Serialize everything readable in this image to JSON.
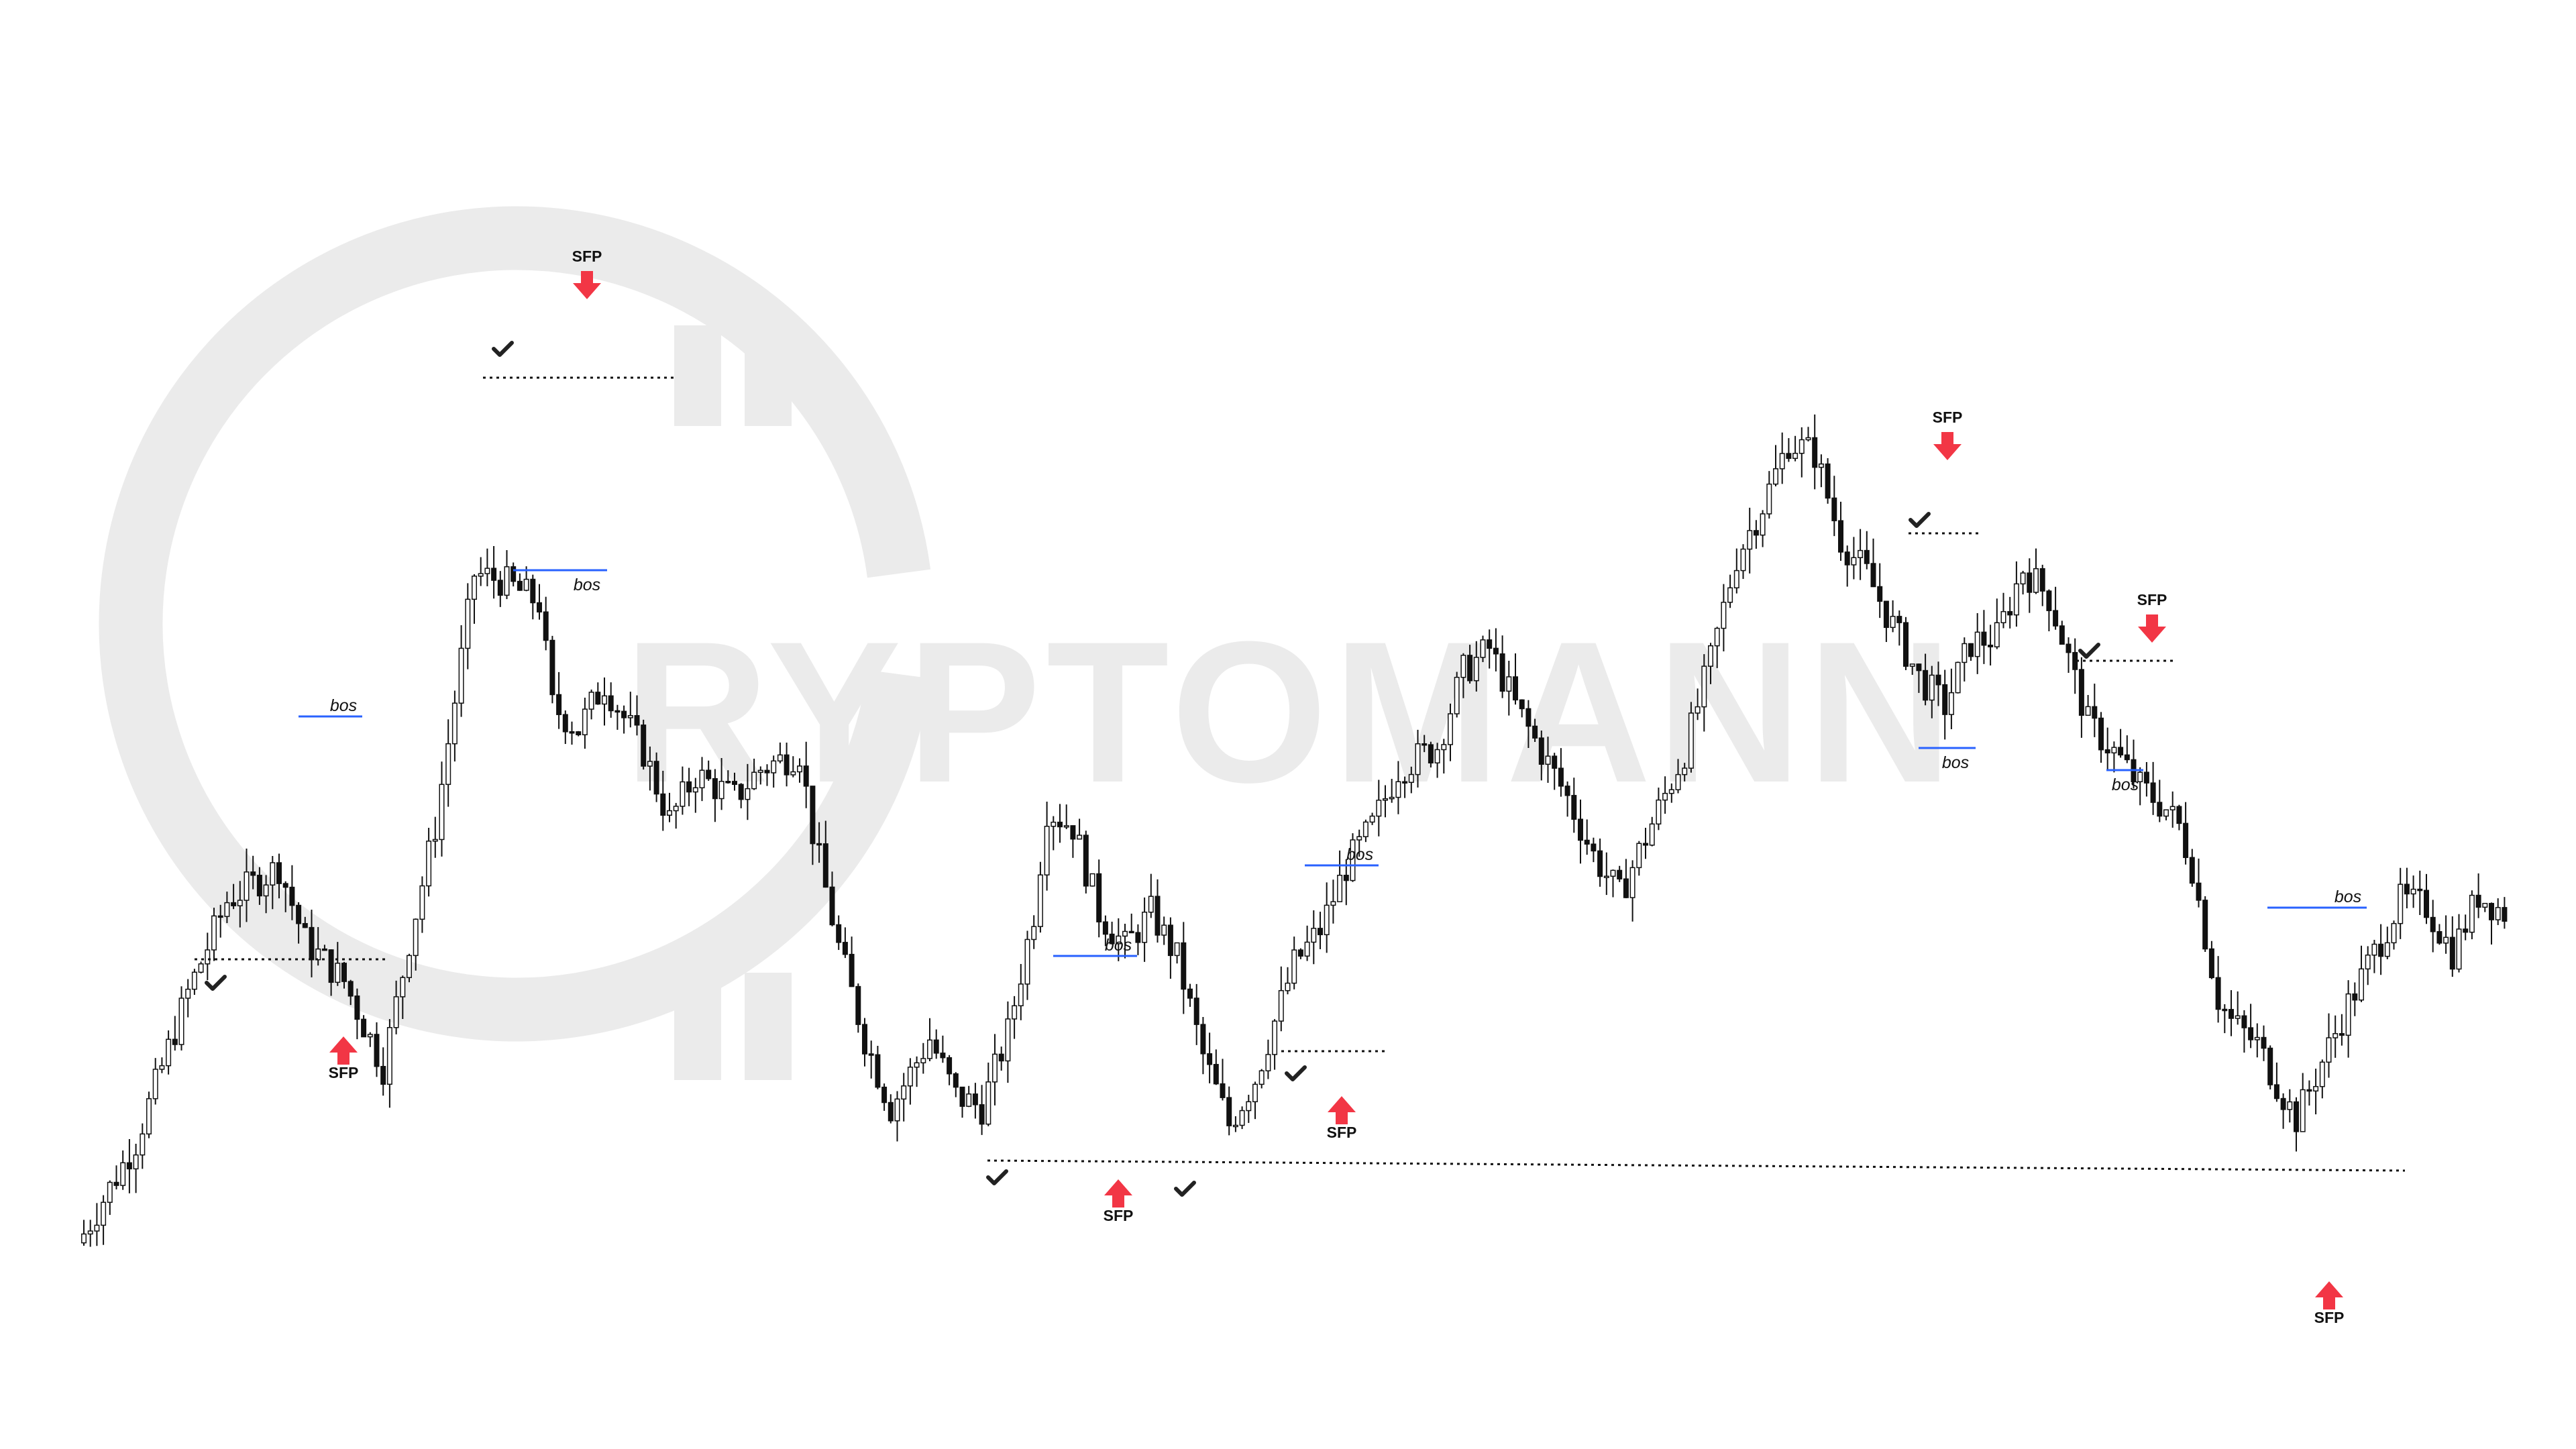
{
  "colors": {
    "background": "#ffffff",
    "bull_candle_fill": "#ffffff",
    "bear_candle_fill": "#111111",
    "candle_outline": "#111111",
    "sfp_arrow": "#f23645",
    "bos_line": "#2962ff",
    "level_line": "#111111",
    "watermark": "#ebebeb"
  },
  "watermark": {
    "text": "RYPTOMANN",
    "icon": "bitcoin-c-logo"
  },
  "chart_data": {
    "type": "candlestick",
    "title": "",
    "xlabel": "",
    "ylabel": "",
    "grid": false,
    "legend": "none",
    "x": "bar index",
    "ylim": [
      0,
      1000
    ],
    "close_path": [
      [
        0,
        100
      ],
      [
        8,
        180
      ],
      [
        16,
        310
      ],
      [
        22,
        390
      ],
      [
        30,
        420
      ],
      [
        34,
        355
      ],
      [
        40,
        320
      ],
      [
        46,
        245
      ],
      [
        50,
        355
      ],
      [
        54,
        455
      ],
      [
        60,
        675
      ],
      [
        64,
        670
      ],
      [
        70,
        650
      ],
      [
        72,
        560
      ],
      [
        76,
        540
      ],
      [
        80,
        580
      ],
      [
        86,
        520
      ],
      [
        90,
        460
      ],
      [
        94,
        500
      ],
      [
        100,
        480
      ],
      [
        104,
        505
      ],
      [
        110,
        520
      ],
      [
        112,
        450
      ],
      [
        116,
        350
      ],
      [
        120,
        270
      ],
      [
        124,
        210
      ],
      [
        130,
        270
      ],
      [
        134,
        220
      ],
      [
        138,
        210
      ],
      [
        142,
        275
      ],
      [
        146,
        380
      ],
      [
        148,
        470
      ],
      [
        152,
        455
      ],
      [
        156,
        380
      ],
      [
        160,
        350
      ],
      [
        164,
        380
      ],
      [
        168,
        340
      ],
      [
        172,
        255
      ],
      [
        176,
        195
      ],
      [
        180,
        235
      ],
      [
        186,
        335
      ],
      [
        190,
        365
      ],
      [
        194,
        420
      ],
      [
        198,
        455
      ],
      [
        202,
        505
      ],
      [
        208,
        525
      ],
      [
        212,
        590
      ],
      [
        216,
        610
      ],
      [
        220,
        560
      ],
      [
        224,
        520
      ],
      [
        228,
        480
      ],
      [
        232,
        430
      ],
      [
        236,
        395
      ],
      [
        240,
        445
      ],
      [
        246,
        520
      ],
      [
        250,
        600
      ],
      [
        254,
        690
      ],
      [
        258,
        735
      ],
      [
        262,
        790
      ],
      [
        266,
        780
      ],
      [
        270,
        705
      ],
      [
        274,
        675
      ],
      [
        278,
        630
      ],
      [
        282,
        585
      ],
      [
        286,
        560
      ],
      [
        290,
        615
      ],
      [
        294,
        620
      ],
      [
        298,
        680
      ],
      [
        302,
        655
      ],
      [
        304,
        620
      ],
      [
        308,
        545
      ],
      [
        312,
        520
      ],
      [
        316,
        490
      ],
      [
        320,
        470
      ],
      [
        322,
        455
      ],
      [
        324,
        420
      ],
      [
        326,
        360
      ],
      [
        328,
        305
      ],
      [
        330,
        285
      ],
      [
        334,
        265
      ],
      [
        338,
        220
      ],
      [
        340,
        200
      ],
      [
        344,
        250
      ],
      [
        348,
        300
      ],
      [
        352,
        345
      ],
      [
        356,
        390
      ],
      [
        360,
        385
      ],
      [
        364,
        345
      ],
      [
        368,
        395
      ],
      [
        372,
        380
      ]
    ],
    "annotations": [
      {
        "type": "SFP",
        "direction": "down",
        "label": "SFP",
        "bar": 87
      },
      {
        "type": "SFP",
        "direction": "up",
        "label": "SFP",
        "bar": 50
      },
      {
        "type": "SFP",
        "direction": "up",
        "label": "SFP",
        "bar": 166
      },
      {
        "type": "SFP",
        "direction": "up",
        "label": "SFP",
        "bar": 200
      },
      {
        "type": "SFP",
        "direction": "down",
        "label": "SFP",
        "bar": 290
      },
      {
        "type": "SFP",
        "direction": "down",
        "label": "SFP",
        "bar": 320
      },
      {
        "type": "SFP",
        "direction": "up",
        "label": "SFP",
        "bar": 347
      },
      {
        "type": "bos",
        "label": "bos"
      },
      {
        "type": "bos",
        "label": "bos"
      },
      {
        "type": "bos",
        "label": "bos"
      },
      {
        "type": "bos",
        "label": "bos"
      },
      {
        "type": "bos",
        "label": "bos"
      },
      {
        "type": "bos",
        "label": "bos"
      },
      {
        "type": "bos",
        "label": "bos"
      }
    ],
    "labels": {
      "sfp": "SFP",
      "bos": "bos"
    }
  }
}
